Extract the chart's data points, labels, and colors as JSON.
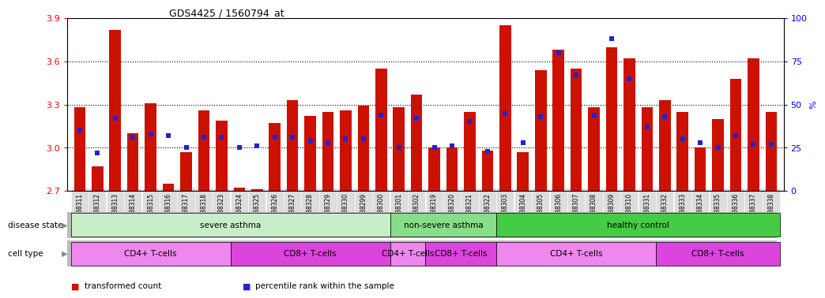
{
  "title": "GDS4425 / 1560794_at",
  "samples": [
    "GSM788311",
    "GSM788312",
    "GSM788313",
    "GSM788314",
    "GSM788315",
    "GSM788316",
    "GSM788317",
    "GSM788318",
    "GSM788323",
    "GSM788324",
    "GSM788325",
    "GSM788326",
    "GSM788327",
    "GSM788328",
    "GSM788329",
    "GSM788330",
    "GSM788299",
    "GSM788300",
    "GSM788301",
    "GSM788302",
    "GSM788319",
    "GSM788320",
    "GSM788321",
    "GSM788322",
    "GSM788303",
    "GSM788304",
    "GSM788305",
    "GSM788306",
    "GSM788307",
    "GSM788308",
    "GSM788309",
    "GSM788310",
    "GSM788331",
    "GSM788332",
    "GSM788333",
    "GSM788334",
    "GSM788335",
    "GSM788336",
    "GSM788337",
    "GSM788338"
  ],
  "transformed_count": [
    3.28,
    2.87,
    3.82,
    3.1,
    3.31,
    2.75,
    2.97,
    3.26,
    3.19,
    2.72,
    2.71,
    3.17,
    3.33,
    3.22,
    3.25,
    3.26,
    3.29,
    3.55,
    3.28,
    3.37,
    3.0,
    3.0,
    3.25,
    2.98,
    3.85,
    2.97,
    3.54,
    3.68,
    3.55,
    3.28,
    3.7,
    3.62,
    3.28,
    3.33,
    3.25,
    3.0,
    3.2,
    3.48,
    3.62,
    3.25
  ],
  "percentile_rank": [
    35,
    22,
    42,
    31,
    33,
    32,
    25,
    31,
    31,
    25,
    26,
    31,
    31,
    29,
    28,
    30,
    30,
    44,
    25,
    42,
    25,
    26,
    40,
    23,
    45,
    28,
    43,
    80,
    67,
    44,
    88,
    65,
    37,
    43,
    30,
    28,
    25,
    32,
    27,
    27
  ],
  "ylim_left": [
    2.7,
    3.9
  ],
  "ylim_right": [
    0,
    100
  ],
  "yticks_left": [
    2.7,
    3.0,
    3.3,
    3.6,
    3.9
  ],
  "yticks_right": [
    0,
    25,
    50,
    75,
    100
  ],
  "bar_color": "#CC1100",
  "dot_color": "#2222CC",
  "background_color": "#FFFFFF",
  "disease_state_groups": [
    {
      "label": "severe asthma",
      "start": 0,
      "end": 18,
      "color": "#C8EEC8"
    },
    {
      "label": "non-severe asthma",
      "start": 18,
      "end": 24,
      "color": "#88DD88"
    },
    {
      "label": "healthy control",
      "start": 24,
      "end": 40,
      "color": "#44CC44"
    }
  ],
  "cell_type_groups": [
    {
      "label": "CD4+ T-cells",
      "start": 0,
      "end": 9,
      "color": "#EE88EE"
    },
    {
      "label": "CD8+ T-cells",
      "start": 9,
      "end": 18,
      "color": "#DD44DD"
    },
    {
      "label": "CD4+ T-cells",
      "start": 18,
      "end": 20,
      "color": "#EE88EE"
    },
    {
      "label": "CD8+ T-cells",
      "start": 20,
      "end": 24,
      "color": "#DD44DD"
    },
    {
      "label": "CD4+ T-cells",
      "start": 24,
      "end": 33,
      "color": "#EE88EE"
    },
    {
      "label": "CD8+ T-cells",
      "start": 33,
      "end": 40,
      "color": "#DD44DD"
    }
  ],
  "legend_items": [
    {
      "label": "transformed count",
      "color": "#CC1100"
    },
    {
      "label": "percentile rank within the sample",
      "color": "#2222CC"
    }
  ]
}
